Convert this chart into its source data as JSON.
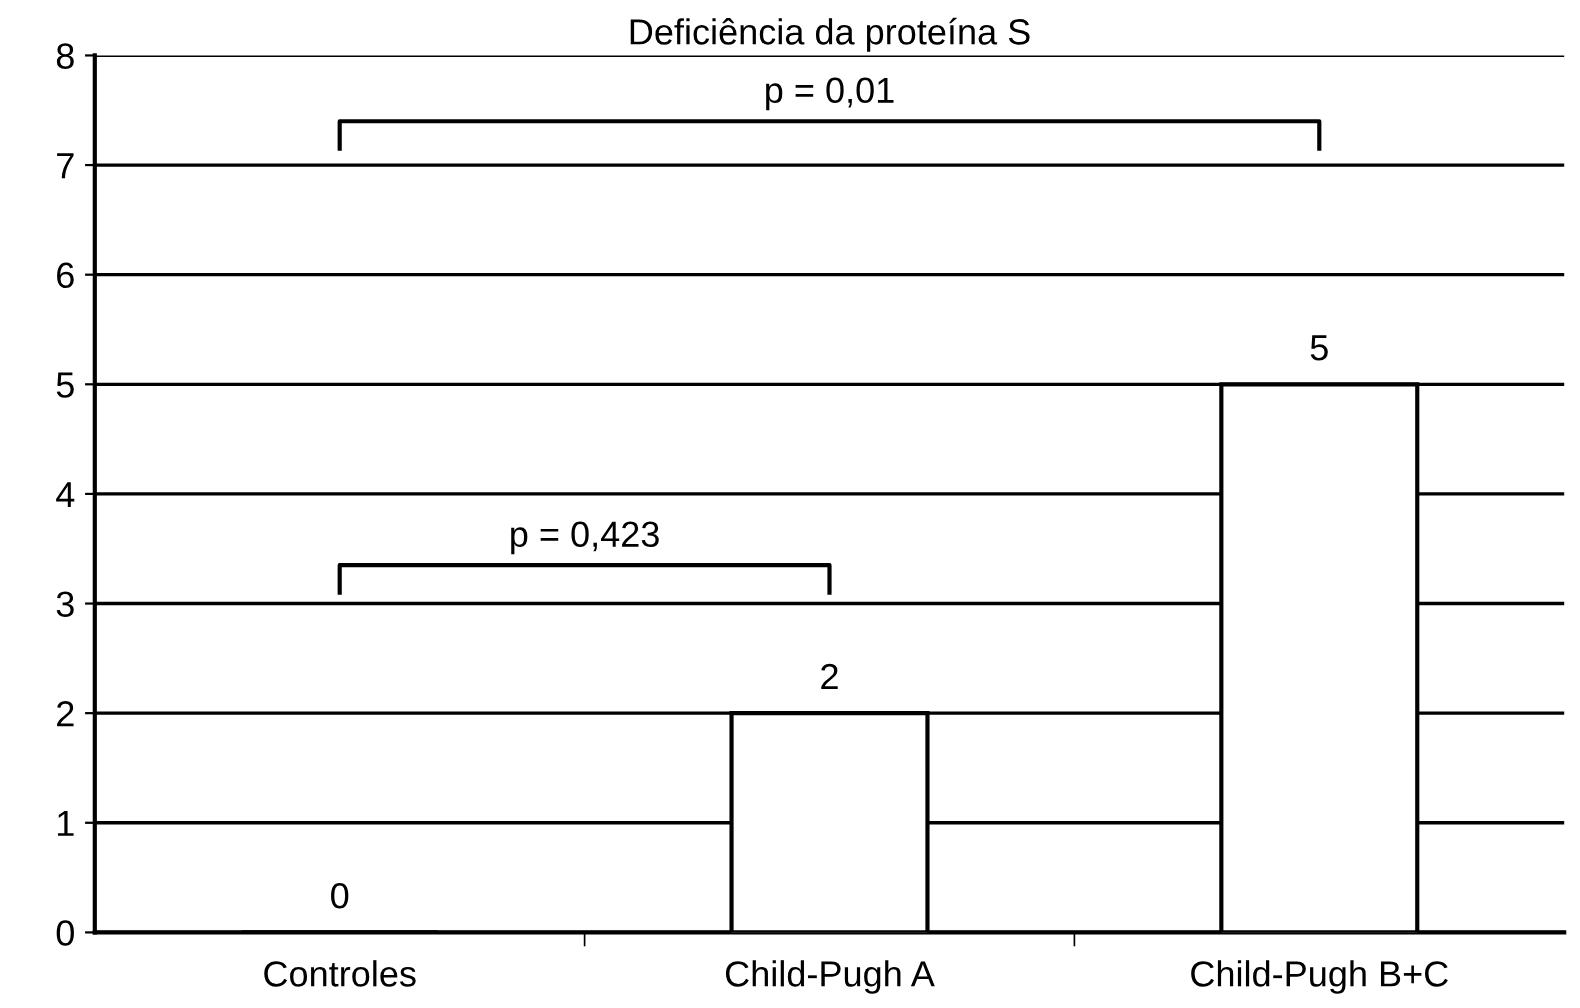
{
  "chart_data": {
    "type": "bar",
    "title": "Deficiência da proteína S",
    "categories": [
      "Controles",
      "Child-Pugh A",
      "Child-Pugh B+C"
    ],
    "values": [
      0,
      2,
      5
    ],
    "color": "#ffffff",
    "ylim": [
      0,
      8
    ],
    "yticks": [
      0,
      1,
      2,
      3,
      4,
      5,
      6,
      7,
      8
    ],
    "grid": "y",
    "data_labels": true,
    "annotations": [
      "p = 0,01",
      "p = 0,423"
    ]
  }
}
